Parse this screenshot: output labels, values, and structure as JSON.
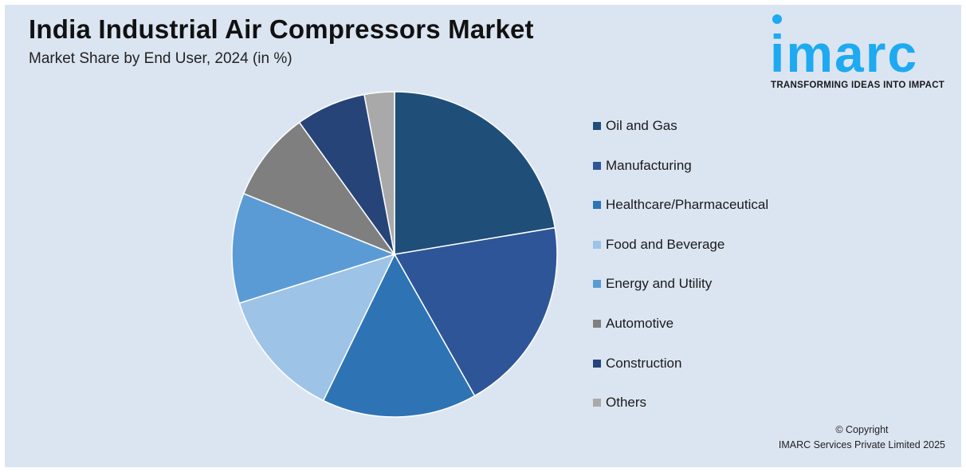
{
  "title": "India Industrial Air Compressors Market",
  "subtitle": "Market Share by End User, 2024 (in %)",
  "logo": {
    "word": "imarc",
    "tagline": "TRANSFORMING IDEAS INTO IMPACT",
    "color": "#1eaaf1"
  },
  "chart_data": {
    "type": "pie",
    "title": "India Industrial Air Compressors Market",
    "subtitle": "Market Share by End User, 2024 (in %)",
    "categories": [
      "Oil and Gas",
      "Manufacturing",
      "Healthcare/Pharmaceutical",
      "Food and Beverage",
      "Energy and Utility",
      "Automotive",
      "Construction",
      "Others"
    ],
    "values": [
      22.5,
      19.5,
      15.5,
      13,
      11,
      9,
      7,
      3
    ],
    "colors": [
      "#1f4e79",
      "#2e5597",
      "#2e74b5",
      "#9dc3e6",
      "#5b9bd5",
      "#7f7f7f",
      "#264478",
      "#a9a9a9"
    ],
    "start_angle_deg": 0,
    "direction": "clockwise",
    "legend": "right"
  },
  "copyright": {
    "line1": "© Copyright",
    "line2": "IMARC Services Private Limited 2025"
  }
}
